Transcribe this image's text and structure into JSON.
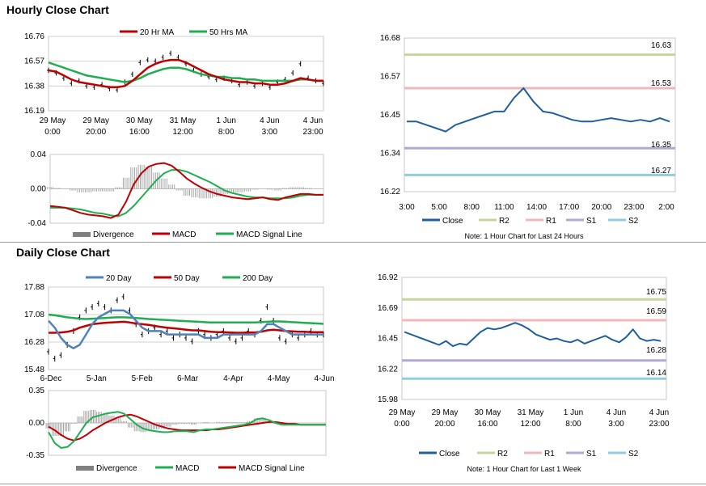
{
  "sections": {
    "hourly_title": "Hourly Close Chart",
    "daily_title": "Daily Close Chart"
  },
  "chart_data": [
    {
      "id": "hourly_price",
      "type": "line",
      "title": "",
      "legend": [
        {
          "name": "20 Hr MA",
          "color": "#c00000"
        },
        {
          "name": "50 Hrs MA",
          "color": "#1fae4f"
        }
      ],
      "yticks": [
        "16.76",
        "16.57",
        "16.38",
        "16.19"
      ],
      "ylim": [
        16.19,
        16.76
      ],
      "xticks": [
        [
          "29 May",
          "0:00"
        ],
        [
          "29 May",
          "20:00"
        ],
        [
          "30 May",
          "16:00"
        ],
        [
          "31 May",
          "12:00"
        ],
        [
          "1 Jun",
          "8:00"
        ],
        [
          "4 Jun",
          "3:00"
        ],
        [
          "4 Jun",
          "23:00"
        ]
      ],
      "series": [
        {
          "name": "Close (OHLC bars)",
          "color": "#000000",
          "values": [
            16.5,
            16.48,
            16.44,
            16.4,
            16.42,
            16.38,
            16.37,
            16.39,
            16.36,
            16.35,
            16.41,
            16.47,
            16.56,
            16.58,
            16.57,
            16.6,
            16.63,
            16.6,
            16.55,
            16.5,
            16.47,
            16.45,
            16.43,
            16.44,
            16.42,
            16.39,
            16.41,
            16.38,
            16.4,
            16.37,
            16.41,
            16.43,
            16.48,
            16.55,
            16.44,
            16.42,
            16.4
          ]
        },
        {
          "name": "20 Hr MA",
          "color": "#c00000",
          "values": [
            16.5,
            16.49,
            16.46,
            16.43,
            16.41,
            16.4,
            16.39,
            16.38,
            16.37,
            16.37,
            16.38,
            16.42,
            16.47,
            16.52,
            16.55,
            16.57,
            16.58,
            16.58,
            16.56,
            16.53,
            16.5,
            16.47,
            16.45,
            16.43,
            16.42,
            16.41,
            16.41,
            16.4,
            16.4,
            16.39,
            16.39,
            16.4,
            16.42,
            16.44,
            16.43,
            16.42,
            16.42
          ]
        },
        {
          "name": "50 Hrs MA",
          "color": "#1fae4f",
          "values": [
            16.56,
            16.54,
            16.52,
            16.5,
            16.48,
            16.46,
            16.45,
            16.44,
            16.43,
            16.42,
            16.41,
            16.42,
            16.44,
            16.47,
            16.49,
            16.51,
            16.52,
            16.52,
            16.51,
            16.49,
            16.47,
            16.46,
            16.45,
            16.45,
            16.44,
            16.44,
            16.43,
            16.43,
            16.42,
            16.42,
            16.42,
            16.42,
            16.42,
            16.43,
            16.43,
            16.42,
            16.42
          ]
        }
      ]
    },
    {
      "id": "hourly_macd",
      "type": "line",
      "legend": [
        {
          "name": "Divergence",
          "color": "#808080"
        },
        {
          "name": "MACD",
          "color": "#c00000"
        },
        {
          "name": "MACD Signal Line",
          "color": "#1fae4f"
        }
      ],
      "yticks": [
        "0.04",
        "0.00",
        "-0.04"
      ],
      "ylim": [
        -0.04,
        0.04
      ],
      "series": [
        {
          "name": "MACD",
          "color": "#c00000",
          "values": [
            -0.02,
            -0.021,
            -0.022,
            -0.025,
            -0.028,
            -0.03,
            -0.031,
            -0.032,
            -0.034,
            -0.03,
            -0.015,
            0.005,
            0.018,
            0.026,
            0.029,
            0.03,
            0.027,
            0.02,
            0.012,
            0.006,
            0.001,
            -0.003,
            -0.006,
            -0.008,
            -0.01,
            -0.011,
            -0.012,
            -0.011,
            -0.01,
            -0.012,
            -0.013,
            -0.01,
            -0.008,
            -0.006,
            -0.006,
            -0.007,
            -0.007
          ]
        },
        {
          "name": "MACD Signal Line",
          "color": "#1fae4f",
          "values": [
            -0.022,
            -0.022,
            -0.022,
            -0.023,
            -0.024,
            -0.026,
            -0.028,
            -0.029,
            -0.031,
            -0.032,
            -0.028,
            -0.02,
            -0.01,
            0.0,
            0.01,
            0.018,
            0.022,
            0.022,
            0.02,
            0.016,
            0.012,
            0.008,
            0.003,
            -0.002,
            -0.005,
            -0.007,
            -0.009,
            -0.01,
            -0.01,
            -0.011,
            -0.011,
            -0.011,
            -0.01,
            -0.008,
            -0.007,
            -0.007,
            -0.007
          ]
        }
      ]
    },
    {
      "id": "hourly_sr",
      "type": "line",
      "yticks": [
        "16.68",
        "16.57",
        "16.45",
        "16.34",
        "16.22"
      ],
      "ylim": [
        16.22,
        16.68
      ],
      "xticks": [
        "3:00",
        "5:00",
        "8:00",
        "11:00",
        "14:00",
        "17:00",
        "20:00",
        "23:00",
        "2:00"
      ],
      "legend": [
        {
          "name": "Close",
          "color": "#1f5fa0"
        },
        {
          "name": "R2",
          "color": "#c3d69b"
        },
        {
          "name": "R1",
          "color": "#f2b8b8"
        },
        {
          "name": "S1",
          "color": "#b4a7d6"
        },
        {
          "name": "S2",
          "color": "#93cddd"
        }
      ],
      "levels": {
        "R2": 16.63,
        "R1": 16.53,
        "S1": 16.35,
        "S2": 16.27
      },
      "level_labels": [
        "16.63",
        "16.53",
        "16.35",
        "16.27"
      ],
      "note": "Note: 1 Hour Chart for Last 24 Hours",
      "close": [
        16.43,
        16.43,
        16.42,
        16.41,
        16.4,
        16.42,
        16.43,
        16.44,
        16.45,
        16.46,
        16.46,
        16.5,
        16.53,
        16.49,
        16.46,
        16.455,
        16.445,
        16.435,
        16.43,
        16.43,
        16.435,
        16.44,
        16.435,
        16.43,
        16.435,
        16.43,
        16.44,
        16.43
      ]
    },
    {
      "id": "daily_price",
      "type": "line",
      "legend": [
        {
          "name": "20 Day",
          "color": "#4f81bd"
        },
        {
          "name": "50 Day",
          "color": "#c00000"
        },
        {
          "name": "200 Day",
          "color": "#1fae4f"
        }
      ],
      "yticks": [
        "17.88",
        "17.08",
        "16.28",
        "15.48"
      ],
      "ylim": [
        15.48,
        17.88
      ],
      "xticks": [
        "6-Dec",
        "5-Jan",
        "5-Feb",
        "6-Mar",
        "4-Apr",
        "4-May",
        "4-Jun"
      ],
      "series": [
        {
          "name": "Close (OHLC bars)",
          "color": "#000000",
          "values": [
            16.0,
            15.8,
            15.9,
            16.2,
            16.6,
            17.0,
            17.2,
            17.3,
            17.4,
            17.3,
            17.2,
            17.5,
            17.6,
            17.2,
            16.8,
            16.5,
            16.6,
            16.7,
            16.5,
            16.6,
            16.4,
            16.5,
            16.4,
            16.3,
            16.6,
            16.5,
            16.4,
            16.5,
            16.6,
            16.4,
            16.3,
            16.4,
            16.6,
            16.5,
            16.9,
            17.3,
            16.9,
            16.4,
            16.3,
            16.5,
            16.4,
            16.5,
            16.6,
            16.5,
            16.5
          ]
        },
        {
          "name": "20 Day",
          "color": "#4f81bd",
          "values": [
            16.9,
            16.7,
            16.4,
            16.2,
            16.1,
            16.2,
            16.5,
            16.8,
            17.0,
            17.1,
            17.2,
            17.2,
            17.2,
            17.1,
            16.9,
            16.7,
            16.6,
            16.6,
            16.6,
            16.5,
            16.5,
            16.5,
            16.5,
            16.5,
            16.5,
            16.4,
            16.4,
            16.4,
            16.5,
            16.5,
            16.5,
            16.5,
            16.5,
            16.5,
            16.6,
            16.8,
            16.8,
            16.7,
            16.6,
            16.5,
            16.5,
            16.5,
            16.5,
            16.5,
            16.5
          ]
        },
        {
          "name": "50 Day",
          "color": "#c00000",
          "values": [
            16.55,
            16.55,
            16.56,
            16.58,
            16.62,
            16.7,
            16.75,
            16.8,
            16.82,
            16.84,
            16.85,
            16.86,
            16.87,
            16.85,
            16.82,
            16.8,
            16.78,
            16.75,
            16.72,
            16.7,
            16.68,
            16.66,
            16.64,
            16.62,
            16.62,
            16.6,
            16.58,
            16.57,
            16.57,
            16.56,
            16.55,
            16.55,
            16.56,
            16.56,
            16.58,
            16.62,
            16.64,
            16.62,
            16.6,
            16.59,
            16.58,
            16.58,
            16.57,
            16.57,
            16.57
          ]
        },
        {
          "name": "200 Day",
          "color": "#1fae4f",
          "values": [
            17.08,
            17.06,
            17.03,
            17.0,
            16.98,
            16.96,
            16.95,
            16.96,
            16.97,
            16.98,
            16.99,
            17.0,
            17.0,
            16.99,
            16.98,
            16.97,
            16.95,
            16.94,
            16.93,
            16.92,
            16.91,
            16.9,
            16.89,
            16.88,
            16.87,
            16.86,
            16.85,
            16.85,
            16.85,
            16.85,
            16.85,
            16.85,
            16.85,
            16.85,
            16.86,
            16.87,
            16.88,
            16.88,
            16.87,
            16.86,
            16.85,
            16.84,
            16.83,
            16.82,
            16.81
          ]
        }
      ]
    },
    {
      "id": "daily_macd",
      "type": "line",
      "legend": [
        {
          "name": "Divergence",
          "color": "#808080"
        },
        {
          "name": "MACD",
          "color": "#1fae4f"
        },
        {
          "name": "MACD Signal Line",
          "color": "#c00000"
        }
      ],
      "yticks": [
        "0.35",
        "0.00",
        "-0.35"
      ],
      "ylim": [
        -0.35,
        0.35
      ],
      "series": [
        {
          "name": "MACD",
          "color": "#1fae4f",
          "values": [
            -0.1,
            -0.22,
            -0.27,
            -0.26,
            -0.2,
            -0.1,
            0.0,
            0.06,
            0.08,
            0.1,
            0.11,
            0.12,
            0.1,
            0.04,
            -0.02,
            -0.06,
            -0.08,
            -0.09,
            -0.1,
            -0.1,
            -0.09,
            -0.09,
            -0.09,
            -0.1,
            -0.08,
            -0.07,
            -0.07,
            -0.06,
            -0.05,
            -0.04,
            -0.03,
            -0.02,
            0.0,
            0.04,
            0.05,
            0.03,
            0.0,
            -0.02,
            -0.02,
            -0.02,
            -0.02,
            -0.02,
            -0.02,
            -0.02,
            -0.02
          ]
        },
        {
          "name": "MACD Signal Line",
          "color": "#c00000",
          "values": [
            -0.04,
            -0.08,
            -0.13,
            -0.17,
            -0.19,
            -0.17,
            -0.13,
            -0.08,
            -0.04,
            0.0,
            0.03,
            0.06,
            0.08,
            0.09,
            0.07,
            0.04,
            0.01,
            -0.02,
            -0.04,
            -0.06,
            -0.07,
            -0.08,
            -0.08,
            -0.08,
            -0.08,
            -0.08,
            -0.07,
            -0.07,
            -0.06,
            -0.05,
            -0.04,
            -0.03,
            -0.02,
            -0.01,
            0.0,
            0.01,
            0.01,
            0.0,
            -0.01,
            -0.01,
            -0.02,
            -0.02,
            -0.02,
            -0.02,
            -0.02
          ]
        }
      ]
    },
    {
      "id": "daily_sr",
      "type": "line",
      "yticks": [
        "16.92",
        "16.69",
        "16.45",
        "16.22",
        "15.98"
      ],
      "ylim": [
        15.98,
        16.92
      ],
      "xticks": [
        [
          "29 May",
          "0:00"
        ],
        [
          "29 May",
          "20:00"
        ],
        [
          "30 May",
          "16:00"
        ],
        [
          "31 May",
          "12:00"
        ],
        [
          "1 Jun",
          "8:00"
        ],
        [
          "4 Jun",
          "3:00"
        ],
        [
          "4 Jun",
          "23:00"
        ]
      ],
      "legend": [
        {
          "name": "Close",
          "color": "#1f5fa0"
        },
        {
          "name": "R2",
          "color": "#c3d69b"
        },
        {
          "name": "R1",
          "color": "#f2b8b8"
        },
        {
          "name": "S1",
          "color": "#b4a7d6"
        },
        {
          "name": "S2",
          "color": "#93cddd"
        }
      ],
      "levels": {
        "R2": 16.75,
        "R1": 16.59,
        "S1": 16.28,
        "S2": 16.14
      },
      "level_labels": [
        "16.75",
        "16.59",
        "16.28",
        "16.14"
      ],
      "note": "Note: 1 Hour Chart for Last 1 Week",
      "close": [
        16.5,
        16.48,
        16.46,
        16.44,
        16.42,
        16.4,
        16.43,
        16.39,
        16.41,
        16.4,
        16.45,
        16.5,
        16.53,
        16.52,
        16.53,
        16.55,
        16.57,
        16.55,
        16.52,
        16.48,
        16.46,
        16.44,
        16.45,
        16.43,
        16.42,
        16.44,
        16.41,
        16.43,
        16.45,
        16.47,
        16.44,
        16.42,
        16.46,
        16.52,
        16.45,
        16.43,
        16.44,
        16.43
      ]
    }
  ]
}
